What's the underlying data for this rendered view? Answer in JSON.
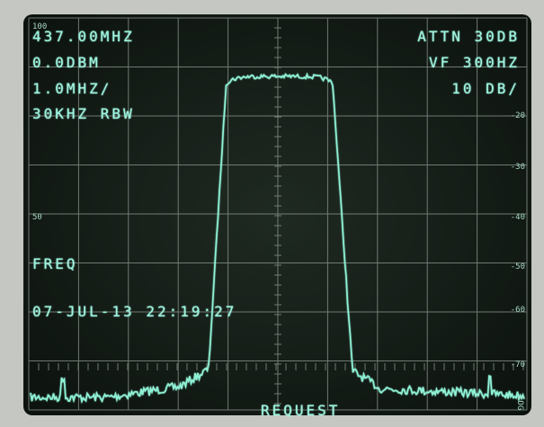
{
  "readout": {
    "center_freq": "437.00MHZ",
    "ref_level": "0.0DBM",
    "span": "1.0MHZ/",
    "rbw": "30KHZ RBW",
    "attn": "ATTN 30DB",
    "vf": "VF 300HZ",
    "scale": "10 DB/",
    "mode": "FREQ",
    "timestamp": "07-JUL-13 22:19:27",
    "status": "REQUEST"
  },
  "left_scale": [
    "100",
    "50"
  ],
  "right_scale": [
    "-20",
    "-30",
    "-40",
    "-50",
    "-60",
    "-70"
  ],
  "corner_label": "LOG"
}
